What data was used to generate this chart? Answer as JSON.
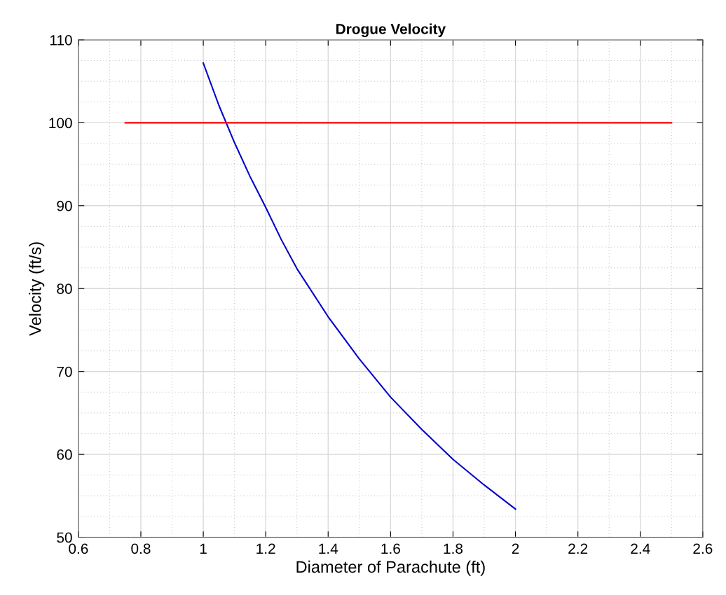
{
  "chart_data": {
    "type": "line",
    "title": "Drogue Velocity",
    "xlabel": "Diameter of Parachute (ft)",
    "ylabel": "Velocity (ft/s)",
    "series": [
      {
        "color": "#0000cc",
        "x": [
          1.0,
          1.05,
          1.1,
          1.15,
          1.2,
          1.25,
          1.3,
          1.4,
          1.5,
          1.6,
          1.7,
          1.8,
          1.9,
          2.0
        ],
        "values": [
          107.2,
          102.1,
          97.6,
          93.5,
          89.8,
          85.9,
          82.4,
          76.6,
          71.5,
          66.9,
          63.0,
          59.4,
          56.3,
          53.4
        ]
      },
      {
        "color": "#ff0000",
        "x": [
          0.75,
          2.5
        ],
        "values": [
          100,
          100
        ]
      }
    ],
    "xlim": [
      0.6,
      2.6
    ],
    "xticks": [
      0.6,
      0.8,
      1,
      1.2,
      1.4,
      1.6,
      1.8,
      2,
      2.2,
      2.4,
      2.6
    ],
    "ylim": [
      50,
      110
    ],
    "yticks": [
      50,
      60,
      70,
      80,
      90,
      100,
      110
    ],
    "grid": true
  }
}
